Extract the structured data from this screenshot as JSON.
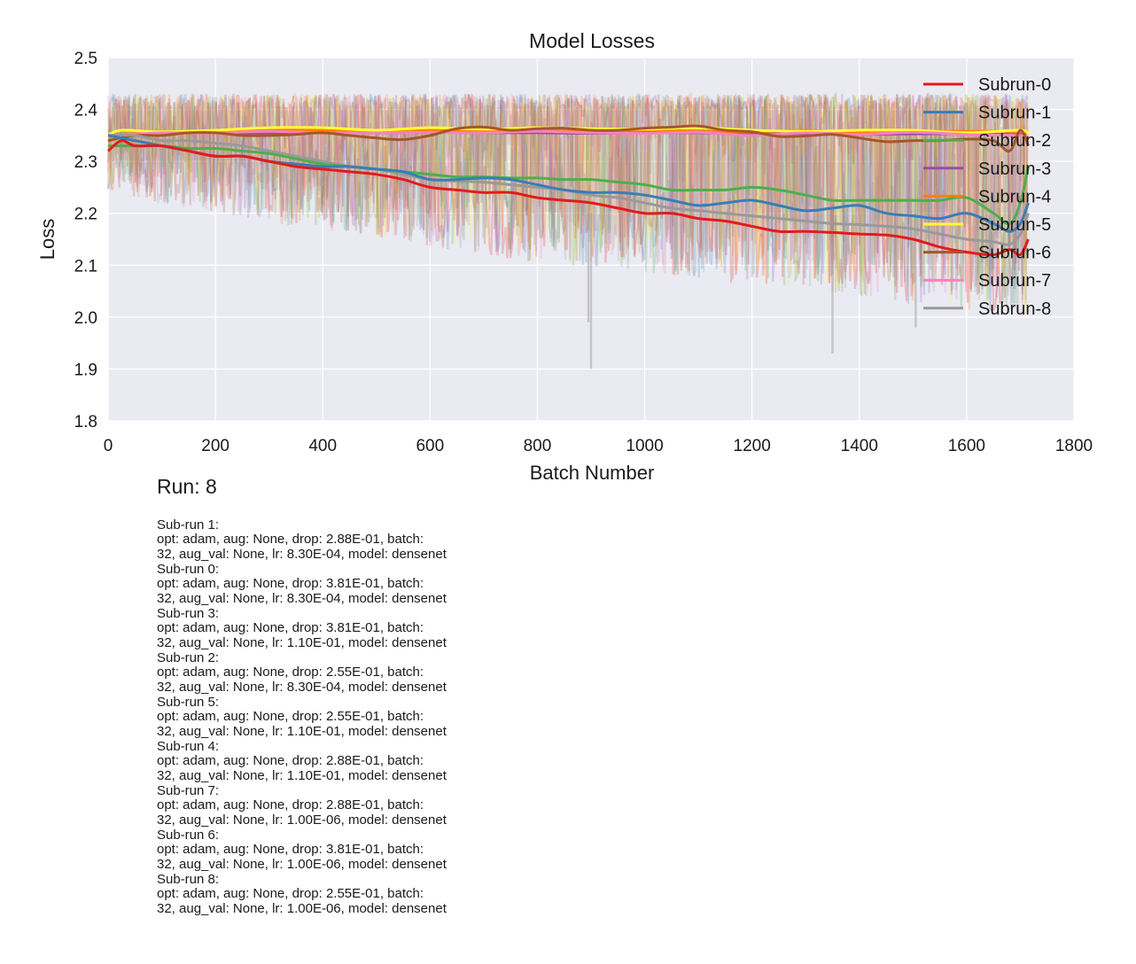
{
  "chart_data": {
    "type": "line",
    "title": "Model Losses",
    "xlabel": "Batch Number",
    "ylabel": "Loss",
    "xlim": [
      0,
      1800
    ],
    "ylim": [
      1.8,
      2.5
    ],
    "xticks": [
      0,
      200,
      400,
      600,
      800,
      1000,
      1200,
      1400,
      1600,
      1800
    ],
    "yticks": [
      1.8,
      1.9,
      2.0,
      2.1,
      2.2,
      2.3,
      2.4,
      2.5
    ],
    "xtick_labels": [
      "0",
      "200",
      "400",
      "600",
      "800",
      "1000",
      "1200",
      "1400",
      "1600",
      "1800"
    ],
    "ytick_labels": [
      "1.8",
      "1.9",
      "2.0",
      "2.1",
      "2.2",
      "2.3",
      "2.4",
      "2.5"
    ],
    "grid": true,
    "legend_position": "top-right",
    "x_max": 1715,
    "raw_band_upper": [
      2.43,
      2.43,
      2.43,
      2.43,
      2.43,
      2.43,
      2.43,
      2.43,
      2.43,
      2.43
    ],
    "raw_band_lower": [
      2.24,
      2.2,
      2.17,
      2.14,
      2.11,
      2.09,
      2.07,
      2.05,
      2.02,
      2.0
    ],
    "raw_min_spikes": [
      {
        "x": 895,
        "y": 1.99
      },
      {
        "x": 900,
        "y": 1.9
      },
      {
        "x": 1350,
        "y": 1.93
      },
      {
        "x": 1505,
        "y": 1.98
      }
    ],
    "series": [
      {
        "name": "Subrun-0",
        "color": "#e41a1c",
        "x": [
          0,
          25,
          50,
          100,
          150,
          200,
          250,
          300,
          350,
          400,
          450,
          500,
          550,
          600,
          650,
          700,
          750,
          800,
          850,
          900,
          950,
          1000,
          1050,
          1100,
          1150,
          1200,
          1250,
          1300,
          1350,
          1400,
          1450,
          1500,
          1550,
          1600,
          1650,
          1680,
          1700,
          1715
        ],
        "y": [
          2.32,
          2.34,
          2.33,
          2.33,
          2.32,
          2.31,
          2.31,
          2.3,
          2.29,
          2.285,
          2.28,
          2.275,
          2.265,
          2.25,
          2.245,
          2.24,
          2.24,
          2.23,
          2.225,
          2.22,
          2.21,
          2.2,
          2.2,
          2.19,
          2.185,
          2.175,
          2.165,
          2.165,
          2.163,
          2.16,
          2.158,
          2.15,
          2.135,
          2.125,
          2.12,
          2.13,
          2.12,
          2.15
        ]
      },
      {
        "name": "Subrun-1",
        "color": "#377eb8",
        "x": [
          0,
          50,
          100,
          150,
          200,
          250,
          300,
          350,
          400,
          450,
          500,
          550,
          600,
          650,
          700,
          750,
          800,
          850,
          900,
          950,
          1000,
          1050,
          1100,
          1150,
          1200,
          1250,
          1300,
          1350,
          1400,
          1450,
          1500,
          1550,
          1600,
          1650,
          1680,
          1700,
          1715
        ],
        "y": [
          2.35,
          2.34,
          2.33,
          2.32,
          2.31,
          2.31,
          2.3,
          2.295,
          2.29,
          2.29,
          2.285,
          2.28,
          2.265,
          2.265,
          2.268,
          2.265,
          2.255,
          2.245,
          2.24,
          2.24,
          2.235,
          2.225,
          2.215,
          2.22,
          2.225,
          2.215,
          2.205,
          2.21,
          2.215,
          2.2,
          2.195,
          2.19,
          2.2,
          2.18,
          2.165,
          2.18,
          2.22
        ]
      },
      {
        "name": "Subrun-2",
        "color": "#4daf4a",
        "x": [
          0,
          50,
          100,
          150,
          200,
          250,
          300,
          350,
          400,
          450,
          500,
          550,
          600,
          650,
          700,
          750,
          800,
          850,
          900,
          950,
          1000,
          1050,
          1100,
          1150,
          1200,
          1250,
          1300,
          1350,
          1400,
          1450,
          1500,
          1550,
          1600,
          1650,
          1680,
          1700,
          1715
        ],
        "y": [
          2.33,
          2.33,
          2.33,
          2.325,
          2.325,
          2.32,
          2.315,
          2.305,
          2.295,
          2.29,
          2.285,
          2.28,
          2.275,
          2.27,
          2.27,
          2.268,
          2.268,
          2.265,
          2.265,
          2.26,
          2.255,
          2.245,
          2.245,
          2.245,
          2.25,
          2.245,
          2.235,
          2.225,
          2.225,
          2.225,
          2.225,
          2.225,
          2.23,
          2.2,
          2.18,
          2.22,
          2.29
        ]
      },
      {
        "name": "Subrun-3",
        "color": "#984ea3",
        "x": [
          0,
          100,
          200,
          300,
          400,
          500,
          600,
          700,
          800,
          900,
          1000,
          1100,
          1200,
          1300,
          1400,
          1500,
          1600,
          1700,
          1715
        ],
        "y": [
          2.35,
          2.355,
          2.355,
          2.355,
          2.356,
          2.355,
          2.356,
          2.355,
          2.355,
          2.354,
          2.355,
          2.355,
          2.353,
          2.354,
          2.352,
          2.353,
          2.353,
          2.352,
          2.35
        ]
      },
      {
        "name": "Subrun-4",
        "color": "#ff7f00",
        "x": [
          0,
          100,
          200,
          300,
          400,
          500,
          600,
          700,
          800,
          900,
          1000,
          1100,
          1200,
          1300,
          1400,
          1500,
          1600,
          1700,
          1715
        ],
        "y": [
          2.35,
          2.357,
          2.358,
          2.36,
          2.36,
          2.358,
          2.36,
          2.36,
          2.36,
          2.358,
          2.36,
          2.358,
          2.357,
          2.36,
          2.356,
          2.358,
          2.358,
          2.358,
          2.355
        ]
      },
      {
        "name": "Subrun-5",
        "color": "#ffff33",
        "x": [
          0,
          25,
          100,
          200,
          300,
          400,
          500,
          600,
          700,
          800,
          900,
          1000,
          1100,
          1200,
          1300,
          1400,
          1500,
          1600,
          1700,
          1715
        ],
        "y": [
          2.35,
          2.36,
          2.357,
          2.36,
          2.365,
          2.365,
          2.36,
          2.365,
          2.362,
          2.365,
          2.363,
          2.362,
          2.365,
          2.36,
          2.358,
          2.36,
          2.36,
          2.355,
          2.36,
          2.35
        ]
      },
      {
        "name": "Subrun-6",
        "color": "#a65628",
        "x": [
          0,
          50,
          100,
          150,
          200,
          250,
          300,
          350,
          400,
          450,
          500,
          550,
          600,
          650,
          700,
          750,
          800,
          850,
          900,
          950,
          1000,
          1050,
          1100,
          1150,
          1200,
          1250,
          1300,
          1350,
          1400,
          1450,
          1500,
          1550,
          1600,
          1650,
          1680,
          1700,
          1715
        ],
        "y": [
          2.34,
          2.35,
          2.35,
          2.355,
          2.355,
          2.35,
          2.35,
          2.352,
          2.355,
          2.35,
          2.345,
          2.342,
          2.35,
          2.363,
          2.366,
          2.36,
          2.363,
          2.364,
          2.36,
          2.36,
          2.364,
          2.366,
          2.368,
          2.36,
          2.357,
          2.348,
          2.349,
          2.352,
          2.345,
          2.338,
          2.34,
          2.34,
          2.343,
          2.34,
          2.32,
          2.36,
          2.33
        ]
      },
      {
        "name": "Subrun-7",
        "color": "#f781bf",
        "x": [
          0,
          100,
          200,
          300,
          400,
          500,
          600,
          700,
          800,
          900,
          1000,
          1100,
          1200,
          1300,
          1400,
          1500,
          1600,
          1700,
          1715
        ],
        "y": [
          2.35,
          2.355,
          2.355,
          2.358,
          2.355,
          2.355,
          2.356,
          2.355,
          2.358,
          2.355,
          2.354,
          2.356,
          2.35,
          2.355,
          2.352,
          2.356,
          2.352,
          2.35,
          2.345
        ]
      },
      {
        "name": "Subrun-8",
        "color": "#999999",
        "x": [
          0,
          50,
          100,
          150,
          200,
          250,
          300,
          350,
          400,
          450,
          500,
          550,
          600,
          650,
          700,
          750,
          800,
          850,
          900,
          950,
          1000,
          1050,
          1100,
          1150,
          1200,
          1250,
          1300,
          1350,
          1400,
          1450,
          1500,
          1550,
          1600,
          1650,
          1680,
          1700,
          1715
        ],
        "y": [
          2.35,
          2.35,
          2.34,
          2.34,
          2.335,
          2.33,
          2.32,
          2.31,
          2.3,
          2.29,
          2.285,
          2.275,
          2.265,
          2.262,
          2.26,
          2.255,
          2.25,
          2.245,
          2.235,
          2.23,
          2.22,
          2.21,
          2.205,
          2.2,
          2.195,
          2.19,
          2.185,
          2.18,
          2.178,
          2.175,
          2.17,
          2.16,
          2.15,
          2.145,
          2.14,
          2.16,
          2.2
        ]
      }
    ]
  },
  "run": {
    "title": "Run: 8",
    "subruns": [
      {
        "header": "Sub-run 1:",
        "line1": "opt: adam, aug: None, drop: 2.88E-01, batch:",
        "line2": "32, aug_val: None, lr: 8.30E-04, model: densenet"
      },
      {
        "header": "Sub-run 0:",
        "line1": "opt: adam, aug: None, drop: 3.81E-01, batch:",
        "line2": "32, aug_val: None, lr: 8.30E-04, model: densenet"
      },
      {
        "header": "Sub-run 3:",
        "line1": "opt: adam, aug: None, drop: 3.81E-01, batch:",
        "line2": "32, aug_val: None, lr: 1.10E-01, model: densenet"
      },
      {
        "header": "Sub-run 2:",
        "line1": "opt: adam, aug: None, drop: 2.55E-01, batch:",
        "line2": "32, aug_val: None, lr: 8.30E-04, model: densenet"
      },
      {
        "header": "Sub-run 5:",
        "line1": "opt: adam, aug: None, drop: 2.55E-01, batch:",
        "line2": "32, aug_val: None, lr: 1.10E-01, model: densenet"
      },
      {
        "header": "Sub-run 4:",
        "line1": "opt: adam, aug: None, drop: 2.88E-01, batch:",
        "line2": "32, aug_val: None, lr: 1.10E-01, model: densenet"
      },
      {
        "header": "Sub-run 7:",
        "line1": "opt: adam, aug: None, drop: 2.88E-01, batch:",
        "line2": "32, aug_val: None, lr: 1.00E-06, model: densenet"
      },
      {
        "header": "Sub-run 6:",
        "line1": "opt: adam, aug: None, drop: 3.81E-01, batch:",
        "line2": "32, aug_val: None, lr: 1.00E-06, model: densenet"
      },
      {
        "header": "Sub-run 8:",
        "line1": "opt: adam, aug: None, drop: 2.55E-01, batch:",
        "line2": "32, aug_val: None, lr: 1.00E-06, model: densenet"
      }
    ]
  }
}
